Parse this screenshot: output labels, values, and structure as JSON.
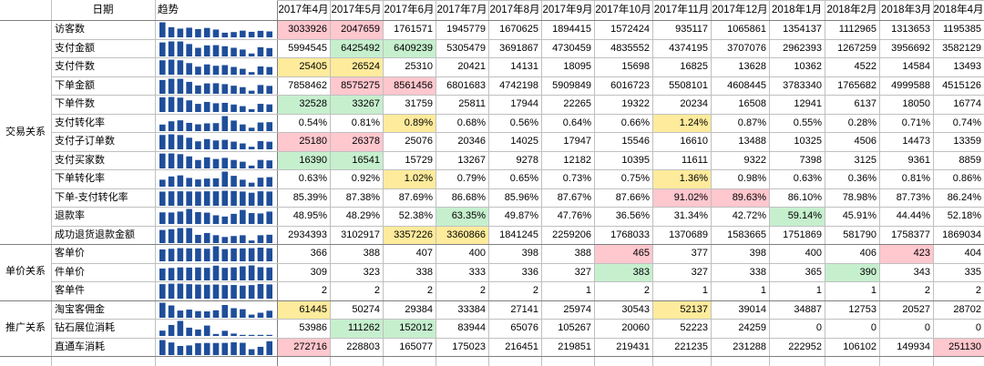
{
  "header": {
    "date_label": "日期",
    "trend_label": "趋势",
    "months": [
      "2017年4月",
      "2017年5月",
      "2017年6月",
      "2017年7月",
      "2017年8月",
      "2017年9月",
      "2017年10月",
      "2017年11月",
      "2017年12月",
      "2018年1月",
      "2018年2月",
      "2018年3月",
      "2018年4月"
    ]
  },
  "groups": [
    {
      "label": "交易关系",
      "start": 0,
      "count": 12
    },
    {
      "label": "单价关系",
      "start": 12,
      "count": 3
    },
    {
      "label": "推广关系",
      "start": 15,
      "count": 3
    }
  ],
  "colors": {
    "red": "#ffc7ce",
    "green": "#c6efce",
    "yellow": "#ffeb9c",
    "spark": "#1f4e9a"
  },
  "rows": [
    {
      "label": "访客数",
      "values": [
        "3033926",
        "2047659",
        "1761571",
        "1945779",
        "1670625",
        "1894415",
        "1572424",
        "935117",
        "1065861",
        "1354137",
        "1112965",
        "1313653",
        "1195385"
      ],
      "spark": [
        3033926,
        2047659,
        1761571,
        1945779,
        1670625,
        1894415,
        1572424,
        935117,
        1065861,
        1354137,
        1112965,
        1313653,
        1195385
      ],
      "highlights": {
        "0": "red",
        "1": "red"
      }
    },
    {
      "label": "支付金额",
      "values": [
        "5994545",
        "6425492",
        "6409239",
        "5305479",
        "3691867",
        "4730459",
        "4835552",
        "4374195",
        "3707076",
        "2962393",
        "1267259",
        "3956692",
        "3582129"
      ],
      "spark": [
        5994545,
        6425492,
        6409239,
        5305479,
        3691867,
        4730459,
        4835552,
        4374195,
        3707076,
        2962393,
        1267259,
        3956692,
        3582129
      ],
      "highlights": {
        "1": "green",
        "2": "green"
      }
    },
    {
      "label": "支付件数",
      "values": [
        "25405",
        "26524",
        "25310",
        "20421",
        "14131",
        "18095",
        "15698",
        "16825",
        "13628",
        "10362",
        "4522",
        "14584",
        "13493"
      ],
      "spark": [
        25405,
        26524,
        25310,
        20421,
        14131,
        18095,
        15698,
        16825,
        13628,
        10362,
        4522,
        14584,
        13493
      ],
      "highlights": {
        "0": "yellow",
        "1": "yellow"
      }
    },
    {
      "label": "下单金额",
      "values": [
        "7858462",
        "8575275",
        "8561456",
        "6801683",
        "4742198",
        "5909849",
        "6016723",
        "5508101",
        "4608445",
        "3783340",
        "1765682",
        "4999588",
        "4515126"
      ],
      "spark": [
        7858462,
        8575275,
        8561456,
        6801683,
        4742198,
        5909849,
        6016723,
        5508101,
        4608445,
        3783340,
        1765682,
        4999588,
        4515126
      ],
      "highlights": {
        "1": "red",
        "2": "red"
      }
    },
    {
      "label": "下单件数",
      "values": [
        "32528",
        "33267",
        "31759",
        "25811",
        "17944",
        "22265",
        "19322",
        "20234",
        "16508",
        "12941",
        "6137",
        "18050",
        "16774"
      ],
      "spark": [
        32528,
        33267,
        31759,
        25811,
        17944,
        22265,
        19322,
        20234,
        16508,
        12941,
        6137,
        18050,
        16774
      ],
      "highlights": {
        "0": "green",
        "1": "green"
      }
    },
    {
      "label": "支付转化率",
      "values": [
        "0.54%",
        "0.81%",
        "0.89%",
        "0.68%",
        "0.56%",
        "0.64%",
        "0.66%",
        "1.24%",
        "0.87%",
        "0.55%",
        "0.28%",
        "0.71%",
        "0.74%"
      ],
      "spark": [
        0.54,
        0.81,
        0.89,
        0.68,
        0.56,
        0.64,
        0.66,
        1.24,
        0.87,
        0.55,
        0.28,
        0.71,
        0.74
      ],
      "highlights": {
        "2": "yellow",
        "7": "yellow"
      }
    },
    {
      "label": "支付子订单数",
      "values": [
        "25180",
        "26378",
        "25076",
        "20346",
        "14025",
        "17947",
        "15546",
        "16610",
        "13488",
        "10325",
        "4506",
        "14473",
        "13359"
      ],
      "spark": [
        25180,
        26378,
        25076,
        20346,
        14025,
        17947,
        15546,
        16610,
        13488,
        10325,
        4506,
        14473,
        13359
      ],
      "highlights": {
        "0": "red",
        "1": "red"
      }
    },
    {
      "label": "支付买家数",
      "values": [
        "16390",
        "16541",
        "15729",
        "13267",
        "9278",
        "12182",
        "10395",
        "11611",
        "9322",
        "7398",
        "3125",
        "9361",
        "8859"
      ],
      "spark": [
        16390,
        16541,
        15729,
        13267,
        9278,
        12182,
        10395,
        11611,
        9322,
        7398,
        3125,
        9361,
        8859
      ],
      "highlights": {
        "0": "green",
        "1": "green"
      }
    },
    {
      "label": "下单转化率",
      "values": [
        "0.63%",
        "0.92%",
        "1.02%",
        "0.79%",
        "0.65%",
        "0.73%",
        "0.75%",
        "1.36%",
        "0.98%",
        "0.63%",
        "0.36%",
        "0.81%",
        "0.86%"
      ],
      "spark": [
        0.63,
        0.92,
        1.02,
        0.79,
        0.65,
        0.73,
        0.75,
        1.36,
        0.98,
        0.63,
        0.36,
        0.81,
        0.86
      ],
      "highlights": {
        "2": "yellow",
        "7": "yellow"
      }
    },
    {
      "label": "下单-支付转化率",
      "values": [
        "85.39%",
        "87.38%",
        "87.69%",
        "86.68%",
        "85.96%",
        "87.67%",
        "87.66%",
        "91.02%",
        "89.63%",
        "86.10%",
        "78.98%",
        "87.73%",
        "86.24%"
      ],
      "spark": [
        85.39,
        87.38,
        87.69,
        86.68,
        85.96,
        87.67,
        87.66,
        91.02,
        89.63,
        86.1,
        78.98,
        87.73,
        86.24
      ],
      "highlights": {
        "7": "red",
        "8": "red"
      }
    },
    {
      "label": "退款率",
      "values": [
        "48.95%",
        "48.29%",
        "52.38%",
        "63.35%",
        "49.87%",
        "47.76%",
        "36.56%",
        "31.34%",
        "42.72%",
        "59.14%",
        "45.91%",
        "44.44%",
        "52.18%"
      ],
      "spark": [
        48.95,
        48.29,
        52.38,
        63.35,
        49.87,
        47.76,
        36.56,
        31.34,
        42.72,
        59.14,
        45.91,
        44.44,
        52.18
      ],
      "highlights": {
        "3": "green",
        "9": "green"
      }
    },
    {
      "label": "成功退货退款金额",
      "values": [
        "2934393",
        "3102917",
        "3357226",
        "3360866",
        "1841245",
        "2259206",
        "1768033",
        "1370689",
        "1583665",
        "1751869",
        "581790",
        "1758377",
        "1869034"
      ],
      "spark": [
        2934393,
        3102917,
        3357226,
        3360866,
        1841245,
        2259206,
        1768033,
        1370689,
        1583665,
        1751869,
        581790,
        1758377,
        1869034
      ],
      "highlights": {
        "2": "yellow",
        "3": "yellow"
      }
    },
    {
      "label": "客单价",
      "values": [
        "366",
        "388",
        "407",
        "400",
        "398",
        "388",
        "465",
        "377",
        "398",
        "400",
        "406",
        "423",
        "404"
      ],
      "spark": [
        366,
        388,
        407,
        400,
        398,
        388,
        465,
        377,
        398,
        400,
        406,
        423,
        404
      ],
      "highlights": {
        "6": "red",
        "11": "red"
      }
    },
    {
      "label": "件单价",
      "values": [
        "309",
        "323",
        "338",
        "333",
        "336",
        "327",
        "383",
        "327",
        "338",
        "365",
        "390",
        "343",
        "335"
      ],
      "spark": [
        309,
        323,
        338,
        333,
        336,
        327,
        383,
        327,
        338,
        365,
        390,
        343,
        335
      ],
      "highlights": {
        "6": "green",
        "10": "green"
      }
    },
    {
      "label": "客单件",
      "values": [
        "2",
        "2",
        "2",
        "2",
        "2",
        "1",
        "2",
        "1",
        "1",
        "1",
        "1",
        "2",
        "2"
      ],
      "spark": [
        1.55,
        1.6,
        1.61,
        1.55,
        1.51,
        1.49,
        1.51,
        1.45,
        1.46,
        1.39,
        1.45,
        1.56,
        1.52
      ],
      "highlights": {}
    },
    {
      "label": "淘宝客佣金",
      "values": [
        "61445",
        "50274",
        "29384",
        "33384",
        "27141",
        "25974",
        "30543",
        "52137",
        "39014",
        "34887",
        "12753",
        "20527",
        "28702"
      ],
      "spark": [
        61445,
        50274,
        29384,
        33384,
        27141,
        25974,
        30543,
        52137,
        39014,
        34887,
        12753,
        20527,
        28702
      ],
      "highlights": {
        "0": "yellow",
        "7": "yellow"
      }
    },
    {
      "label": "钻石展位消耗",
      "values": [
        "53986",
        "111262",
        "152012",
        "83944",
        "65076",
        "105267",
        "20060",
        "52223",
        "24259",
        "0",
        "0",
        "0",
        "0"
      ],
      "spark": [
        53986,
        111262,
        152012,
        83944,
        65076,
        105267,
        20060,
        52223,
        24259,
        0,
        0,
        0,
        0
      ],
      "highlights": {
        "1": "green",
        "2": "green"
      }
    },
    {
      "label": "直通车消耗",
      "values": [
        "272716",
        "228803",
        "165077",
        "175023",
        "216451",
        "219851",
        "219431",
        "221235",
        "231288",
        "222952",
        "106102",
        "149934",
        "251130"
      ],
      "spark": [
        272716,
        228803,
        165077,
        175023,
        216451,
        219851,
        219431,
        221235,
        231288,
        222952,
        106102,
        149934,
        251130
      ],
      "highlights": {
        "0": "red",
        "12": "red"
      }
    }
  ]
}
